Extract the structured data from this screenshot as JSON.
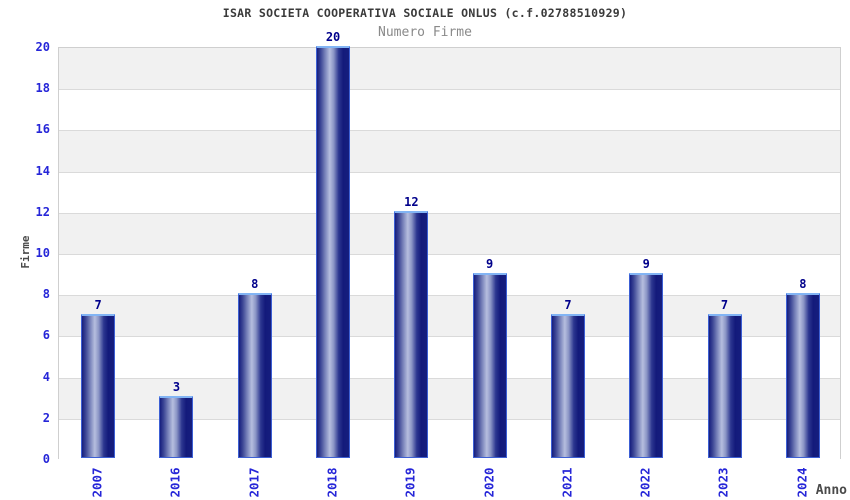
{
  "header": {
    "title": "ISAR SOCIETA COOPERATIVA SOCIALE ONLUS (c.f.02788510929)",
    "subtitle": "Numero Firme"
  },
  "chart_data": {
    "type": "bar",
    "title": "ISAR SOCIETA COOPERATIVA SOCIALE ONLUS (c.f.02788510929)",
    "subtitle": "Numero Firme",
    "xlabel": "Anno",
    "ylabel": "Firme",
    "categories": [
      "2007",
      "2016",
      "2017",
      "2018",
      "2019",
      "2020",
      "2021",
      "2022",
      "2023",
      "2024"
    ],
    "values": [
      7,
      3,
      8,
      20,
      12,
      9,
      7,
      9,
      7,
      8
    ],
    "ylim": [
      0,
      20
    ],
    "ytick_step": 2,
    "yticks": [
      0,
      2,
      4,
      6,
      8,
      10,
      12,
      14,
      16,
      18,
      20
    ],
    "legend": "none",
    "grid": "alternating-horizontal-bands",
    "bar_labels_shown": true,
    "colors": {
      "title_text": "#3a3a3a",
      "subtitle_text": "#8a8a8a",
      "axis_title_text": "#4a4a4a",
      "tick_label_text": "#2626d8",
      "bar_value_text": "#00008b",
      "bar_dark": "#161e7e",
      "bar_highlight": "#b6bede",
      "bar_border": "#3c5fd4",
      "bar_border_top": "#82b4f4",
      "band_gray": "#f1f1f1",
      "band_white": "#ffffff",
      "gridline": "#dadada",
      "plot_border": "#cfcfcf",
      "background": "#ffffff"
    }
  }
}
